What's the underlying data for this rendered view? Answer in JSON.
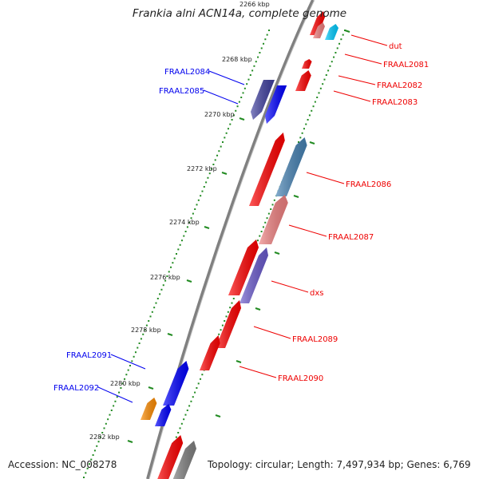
{
  "title": "Frankia alni ACN14a, complete genome",
  "footer": {
    "accession": "Accession: NC_008278",
    "topology": "Topology: circular; Length: 7,497,934 bp; Genes: 6,769"
  },
  "scale_labels": [
    "2266 kbp",
    "2268 kbp",
    "2270 kbp",
    "2272 kbp",
    "2274 kbp",
    "2276 kbp",
    "2278 kbp",
    "2280 kbp",
    "2282 kbp"
  ],
  "genes": [
    {
      "name": "dut",
      "strand": "forward",
      "color": "#00ccff",
      "label_color": "#ee0000"
    },
    {
      "name": "FRAAL2081",
      "strand": "forward",
      "color": "#ff0000",
      "label_color": "#ee0000"
    },
    {
      "name": "FRAAL2082",
      "strand": "forward",
      "color": "#ff0000",
      "label_color": "#ee0000"
    },
    {
      "name": "FRAAL2083",
      "strand": "forward",
      "color": "#ff0000",
      "label_color": "#ee0000"
    },
    {
      "name": "FRAAL2084",
      "strand": "reverse",
      "color": "#4040a0",
      "label_color": "#0000ee"
    },
    {
      "name": "FRAAL2085",
      "strand": "reverse",
      "color": "#0000ff",
      "label_color": "#0000ee"
    },
    {
      "name": "FRAAL2086",
      "strand": "forward",
      "color": "#4682b4",
      "label_color": "#ee0000"
    },
    {
      "name": "FRAAL2087",
      "strand": "forward",
      "color": "#f08080",
      "label_color": "#ee0000"
    },
    {
      "name": "dxs",
      "strand": "forward",
      "color": "#6a5acd",
      "label_color": "#ee0000"
    },
    {
      "name": "FRAAL2089",
      "strand": "forward",
      "color": "#ff0000",
      "label_color": "#ee0000"
    },
    {
      "name": "FRAAL2090",
      "strand": "forward",
      "color": "#ff0000",
      "label_color": "#ee0000"
    },
    {
      "name": "FRAAL2091",
      "strand": "reverse",
      "color": "#0000ff",
      "label_color": "#0000ee"
    },
    {
      "name": "FRAAL2092",
      "strand": "reverse",
      "color": "#ff8c00",
      "label_color": "#0000ee"
    }
  ],
  "colors": {
    "backbone": "#808080",
    "tick": "#228b22",
    "forward_gene": "#ff0000",
    "reverse_gene": "#0000ff",
    "forward_label": "#ee0000",
    "reverse_label": "#0000ee"
  }
}
